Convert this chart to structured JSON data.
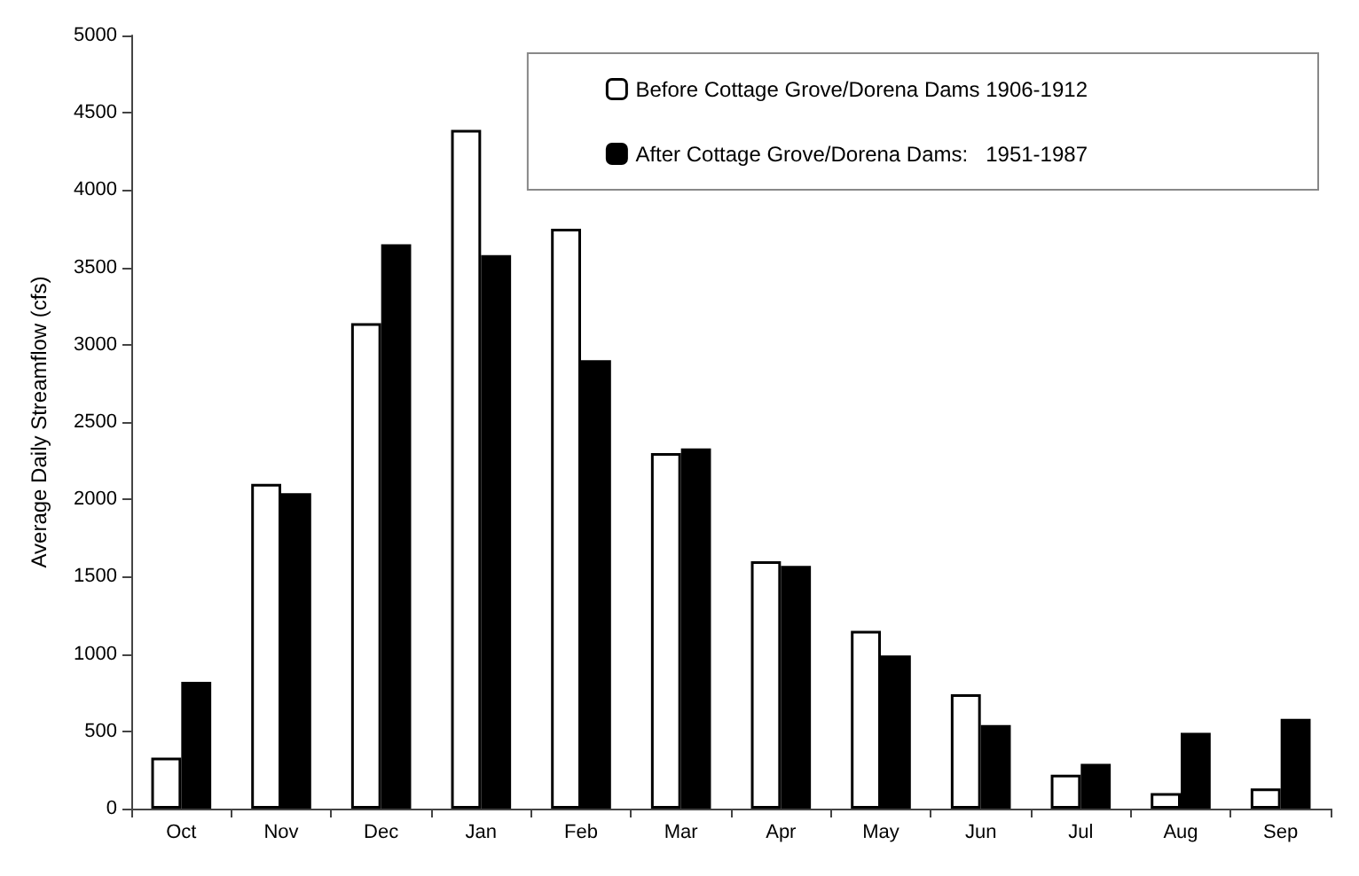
{
  "chart_data": {
    "type": "bar",
    "ylabel": "Average Daily Streamflow (cfs)",
    "categories": [
      "Oct",
      "Nov",
      "Dec",
      "Jan",
      "Feb",
      "Mar",
      "Apr",
      "May",
      "Jun",
      "Jul",
      "Aug",
      "Sep"
    ],
    "series": [
      {
        "name": "Before Cottage Grove/Dorena Dams 1906-1912",
        "color": "#ffffff",
        "values": [
          330,
          2100,
          3140,
          4390,
          3750,
          2300,
          1600,
          1150,
          740,
          220,
          100,
          130
        ]
      },
      {
        "name": "After Cottage Grove/Dorena Dams:   1951-1987",
        "color": "#000000",
        "values": [
          820,
          2040,
          3650,
          3580,
          2900,
          2330,
          1570,
          990,
          540,
          290,
          490,
          580
        ]
      }
    ],
    "ylim": [
      0,
      5000
    ],
    "yticks": [
      0,
      500,
      1000,
      1500,
      2000,
      2500,
      3000,
      3500,
      4000,
      4500,
      5000
    ],
    "grid": false,
    "legend": "top right"
  }
}
